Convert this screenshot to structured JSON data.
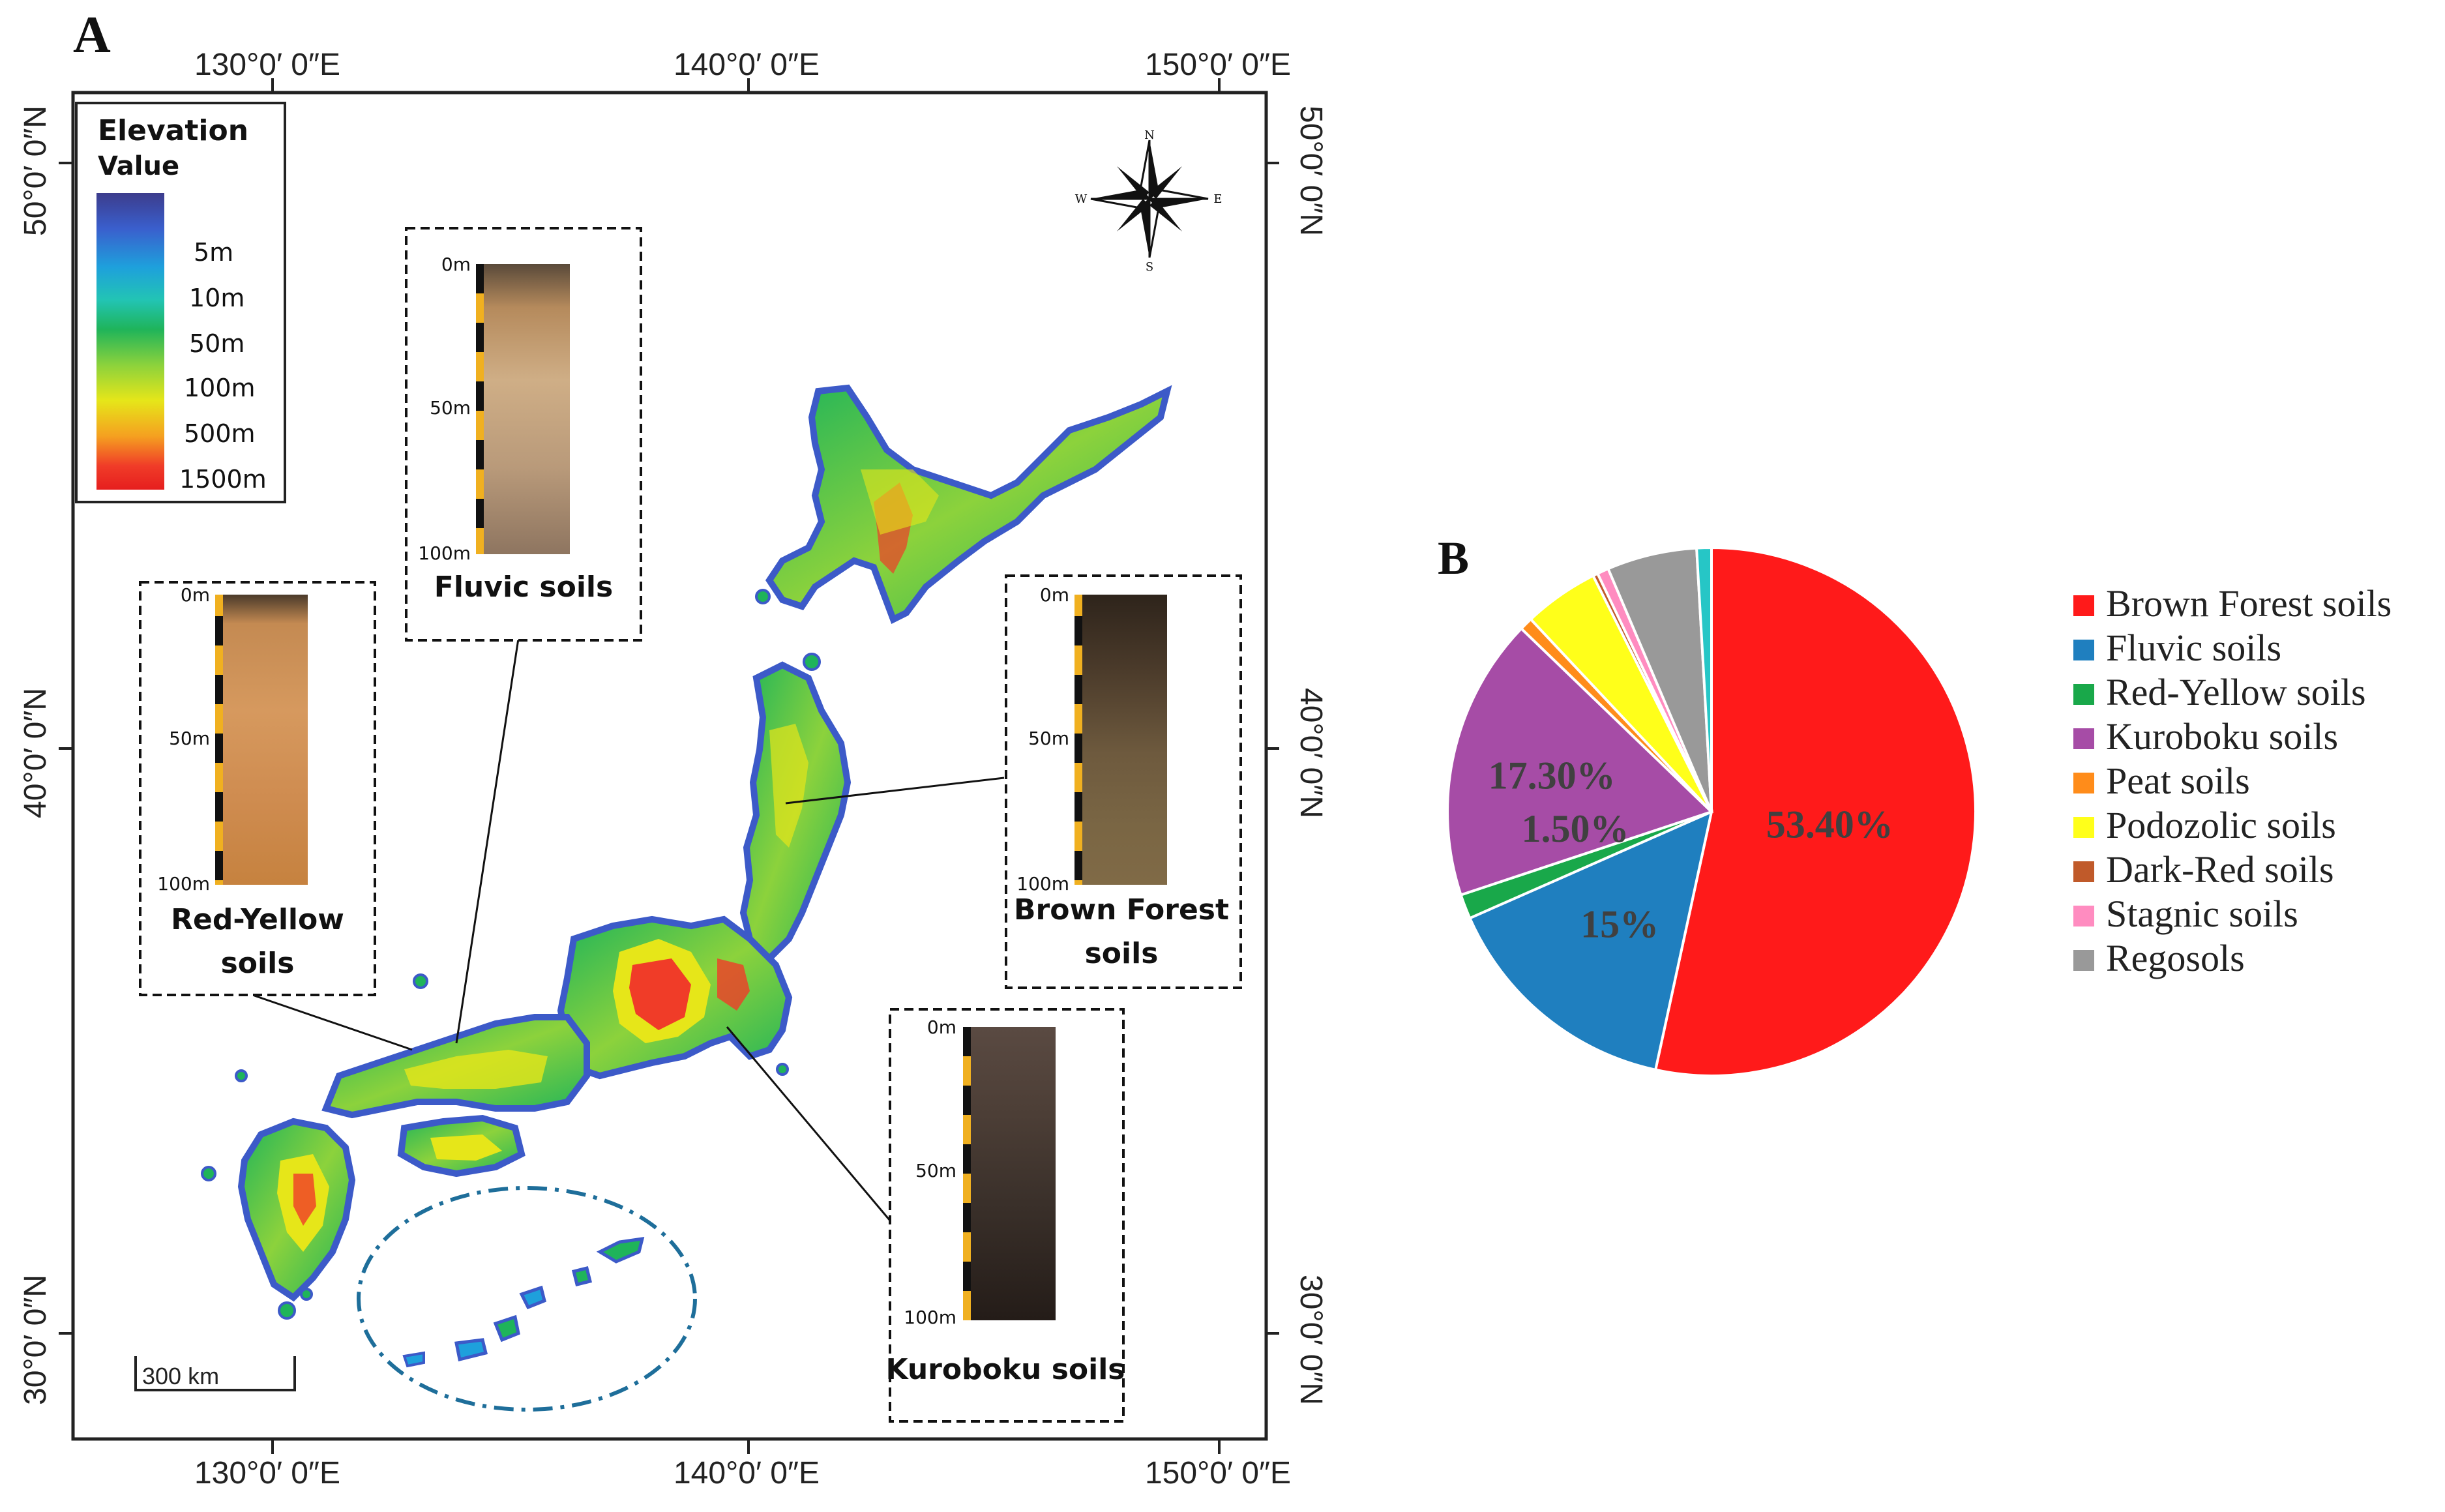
{
  "panel_a": {
    "letter": "A",
    "top_lon_labels": [
      "130°0′ 0″E",
      "140°0′ 0″E",
      "150°0′ 0″E"
    ],
    "bottom_lon_labels": [
      "130°0′ 0″E",
      "140°0′ 0″E",
      "150°0′ 0″E"
    ],
    "left_lat_labels": [
      "50°0′ 0″N",
      "40°0′ 0″N",
      "30°0′ 0″N"
    ],
    "right_lat_labels": [
      "50°0′ 0″N",
      "40°0′ 0″N",
      "30°0′ 0″N"
    ],
    "legend": {
      "title_line1": "Elevation",
      "title_line2": "Value",
      "labels": [
        "5m",
        "10m",
        "50m",
        "100m",
        "500m",
        "1500m"
      ],
      "gradient_colors": [
        "#3c3c8c",
        "#3a5fcd",
        "#1ea0dc",
        "#22c4b4",
        "#1fb45a",
        "#8cd23c",
        "#e6e619",
        "#f5a020",
        "#f03c28",
        "#e61e1e"
      ]
    },
    "compass": {
      "n": "N",
      "s": "S",
      "e": "E",
      "w": "W"
    },
    "scale_bar_label": "300 km",
    "soil_profiles": [
      {
        "id": "fluvic",
        "title": "Fluvic soils",
        "ticks": [
          "0m",
          "50m",
          "100m"
        ],
        "colors": [
          "#5a4a3a",
          "#b58a5c",
          "#cfae86",
          "#b99a7a",
          "#8e7560"
        ]
      },
      {
        "id": "red-yellow",
        "title_line1": "Red-Yellow",
        "title_line2": "soils",
        "ticks": [
          "0m",
          "50m",
          "100m"
        ],
        "colors": [
          "#4a3a2a",
          "#c48a52",
          "#d6995e",
          "#cf8c50",
          "#c6823f"
        ]
      },
      {
        "id": "brown-forest",
        "title": "Brown Forest",
        "title_line2": "soils",
        "ticks": [
          "0m",
          "50m",
          "100m"
        ],
        "colors": [
          "#2e241b",
          "#4a3a2a",
          "#6e5a3e",
          "#7a6644",
          "#806a46"
        ]
      },
      {
        "id": "kuroboku",
        "title": "Kuroboku soils",
        "ticks": [
          "0m",
          "50m",
          "100m"
        ],
        "colors": [
          "#5a4a42",
          "#4c3e36",
          "#3a302a",
          "#2c2420",
          "#241c18"
        ]
      }
    ],
    "map_colors": {
      "water": "#3c5ac8",
      "land_low": "#1fb45a",
      "land_mid": "#e6e619",
      "land_high": "#f03c28"
    },
    "okinawa_ellipse_color": "#1e6e9a"
  },
  "panel_b": {
    "letter": "B",
    "chart_data": {
      "type": "pie",
      "title": "",
      "start_angle_deg": 0,
      "direction": "clockwise",
      "categories": [
        "Brown Forest soils",
        "Fluvic soils",
        "Red-Yellow soils",
        "Kuroboku soils",
        "Peat soils",
        "Podozolic soils",
        "Dark-Red soils",
        "Stagnic soils",
        "Regosols",
        "Unlabeled (teal)"
      ],
      "values": [
        53.4,
        15.0,
        1.5,
        17.3,
        0.8,
        4.6,
        0.3,
        0.7,
        5.5,
        0.9
      ],
      "colors": [
        "#ff1a1a",
        "#1f7fbf",
        "#19a84a",
        "#a64ca6",
        "#ff8c1a",
        "#ffff1a",
        "#c05a2a",
        "#ff8cc0",
        "#999999",
        "#26c6c6"
      ],
      "data_labels": [
        {
          "category": "Brown Forest soils",
          "text": "53.40%"
        },
        {
          "category": "Fluvic soils",
          "text": "15%"
        },
        {
          "category": "Red-Yellow soils",
          "text": "1.50%"
        },
        {
          "category": "Kuroboku soils",
          "text": "17.30%"
        }
      ],
      "legend": {
        "placement": "right",
        "entries": [
          "Brown Forest soils",
          "Fluvic soils",
          "Red-Yellow soils",
          "Kuroboku soils",
          "Peat soils",
          "Podozolic soils",
          "Dark-Red soils",
          "Stagnic soils",
          "Regosols"
        ]
      }
    }
  }
}
